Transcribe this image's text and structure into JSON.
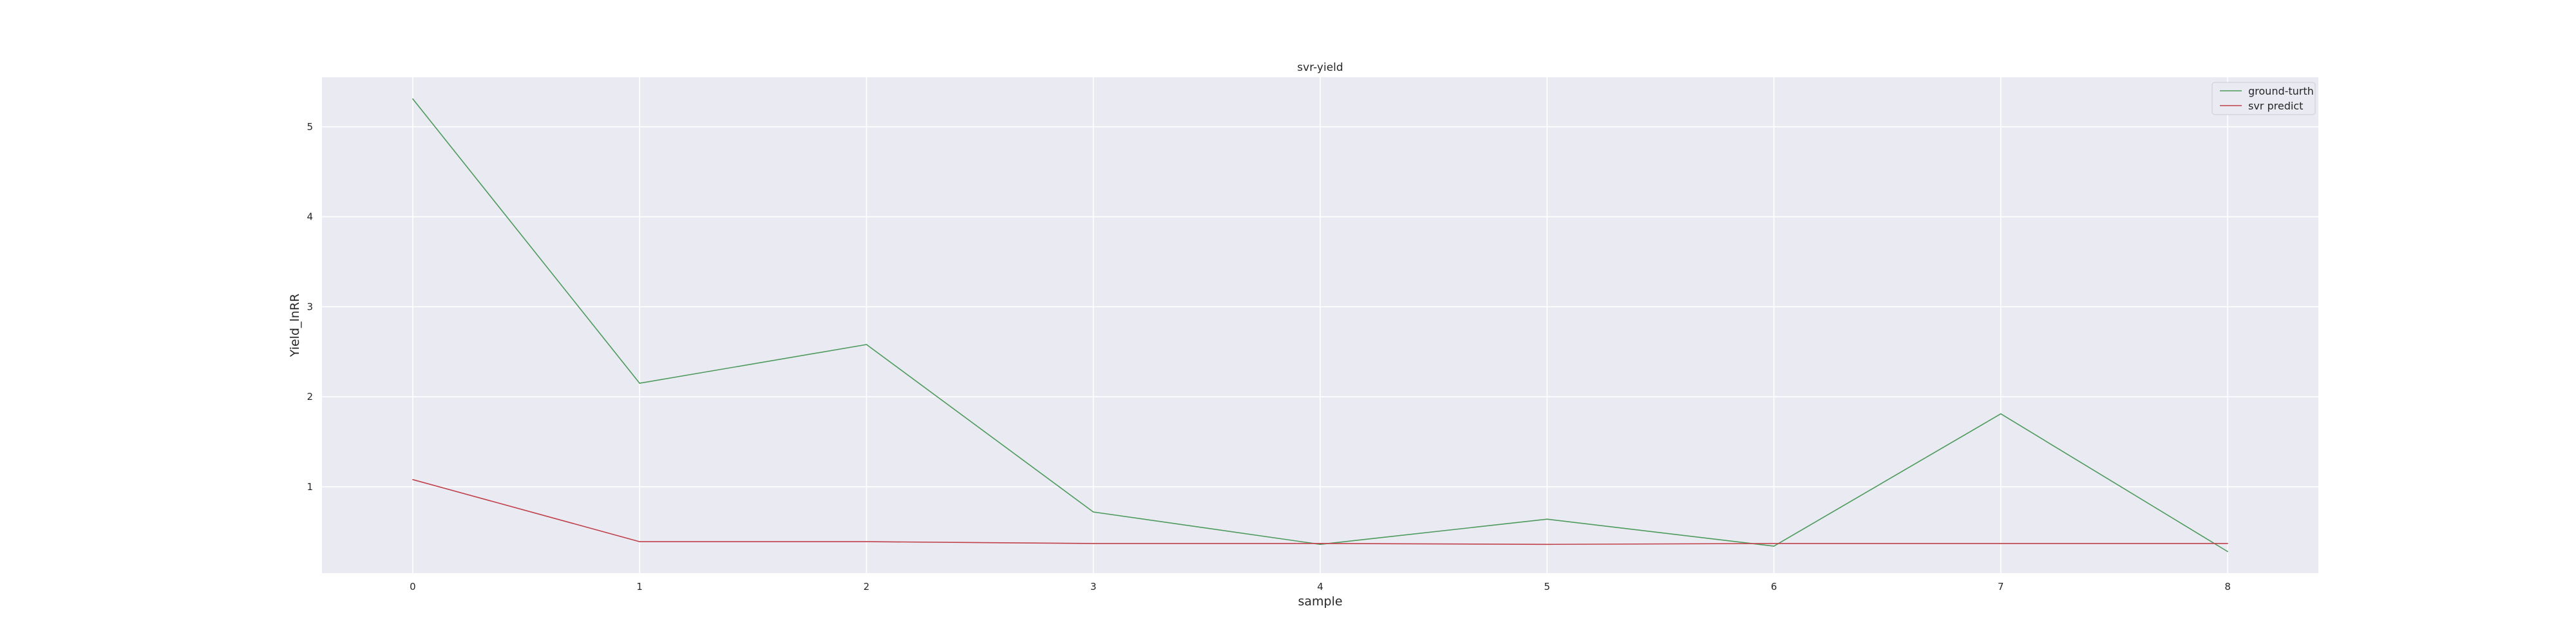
{
  "chart_data": {
    "type": "line",
    "title": "svr-yield",
    "xlabel": "sample",
    "ylabel": "Yield_lnRR",
    "x": [
      0,
      1,
      2,
      3,
      4,
      5,
      6,
      7,
      8
    ],
    "x_ticks": [
      "0",
      "1",
      "2",
      "3",
      "4",
      "5",
      "6",
      "7",
      "8"
    ],
    "y_ticks": [
      "1",
      "2",
      "3",
      "4",
      "5"
    ],
    "xlim": [
      -0.4,
      8.4
    ],
    "ylim": [
      0.04,
      5.55
    ],
    "grid": true,
    "legend_position": "top-right",
    "series": [
      {
        "name": "ground-turth",
        "color": "#4c9a5b",
        "values": [
          5.31,
          2.15,
          2.58,
          0.72,
          0.36,
          0.64,
          0.34,
          1.81,
          0.28
        ]
      },
      {
        "name": "svr predict",
        "color": "#c0404a",
        "values": [
          1.08,
          0.39,
          0.39,
          0.37,
          0.37,
          0.36,
          0.37,
          0.37,
          0.37
        ]
      }
    ]
  }
}
